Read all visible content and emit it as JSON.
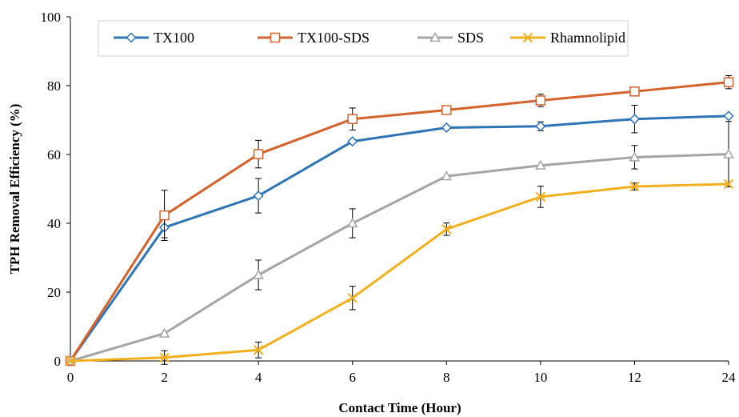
{
  "chart_data": {
    "type": "line",
    "xlabel": "Contact Time (Hour)",
    "ylabel": "TPH Removal Efficiency (%)",
    "categories": [
      "0",
      "2",
      "4",
      "6",
      "8",
      "10",
      "12",
      "24"
    ],
    "ylim": [
      0,
      100
    ],
    "yticks": [
      0,
      20,
      40,
      60,
      80,
      100
    ],
    "grid": false,
    "legend_position": "top",
    "series": [
      {
        "name": "TX100",
        "color": "#2E75B6",
        "marker": "diamond",
        "values": [
          0,
          38.8,
          48.0,
          63.8,
          67.8,
          68.2,
          70.3,
          71.2
        ],
        "errors": [
          0,
          3.0,
          5.0,
          0,
          0,
          1.3,
          4.0,
          0
        ]
      },
      {
        "name": "TX100-SDS",
        "color": "#D4622B",
        "marker": "square",
        "values": [
          0,
          42.3,
          60.1,
          70.3,
          72.9,
          75.7,
          78.3,
          81.0
        ],
        "errors": [
          0,
          7.3,
          4.0,
          3.2,
          0,
          1.8,
          0,
          1.9
        ]
      },
      {
        "name": "SDS",
        "color": "#A5A5A5",
        "marker": "triangle",
        "values": [
          0,
          8.0,
          25.0,
          40.0,
          53.7,
          56.8,
          59.2,
          60.1
        ],
        "errors": [
          0,
          0,
          4.3,
          4.2,
          0,
          0,
          3.4,
          9.5
        ]
      },
      {
        "name": "Rhamnolipid",
        "color": "#F2B01E",
        "marker": "x",
        "values": [
          0,
          1.0,
          3.2,
          18.3,
          38.3,
          47.7,
          50.7,
          51.4
        ],
        "errors": [
          0,
          2.0,
          2.3,
          3.4,
          1.8,
          3.1,
          1.0,
          0
        ]
      }
    ]
  }
}
